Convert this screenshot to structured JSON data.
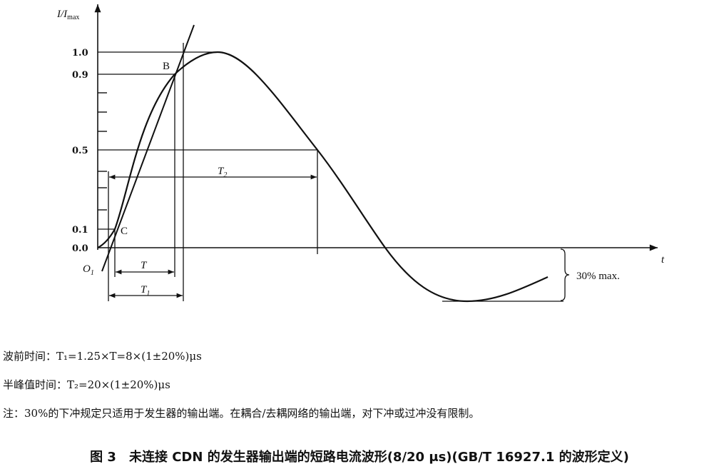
{
  "figure": {
    "y_axis_label": {
      "main": "I/I",
      "sub": "max"
    },
    "x_axis_label": "t",
    "y_ticks": [
      "1.0",
      "0.9",
      "0.5",
      "0.1",
      "0.0"
    ],
    "points": {
      "B": "B",
      "C": "C",
      "O1": {
        "main": "O",
        "sub": "1"
      }
    },
    "intervals": {
      "T": {
        "main": "T",
        "sub": ""
      },
      "T1": {
        "main": "T",
        "sub": "1"
      },
      "T2": {
        "main": "T",
        "sub": "2"
      }
    },
    "undershoot_label": "30% max."
  },
  "notes": [
    "波前时间：T₁=1.25×T=8×(1±20%)μs",
    "半峰值时间：T₂=20×(1±20%)μs",
    "注：30%的下冲规定只适用于发生器的输出端。在耦合/去耦网络的输出端，对下冲或过冲没有限制。"
  ],
  "caption": "图 3　未连接 CDN 的发生器输出端的短路电流波形(8/20 μs)(GB/T 16927.1 的波形定义)"
}
